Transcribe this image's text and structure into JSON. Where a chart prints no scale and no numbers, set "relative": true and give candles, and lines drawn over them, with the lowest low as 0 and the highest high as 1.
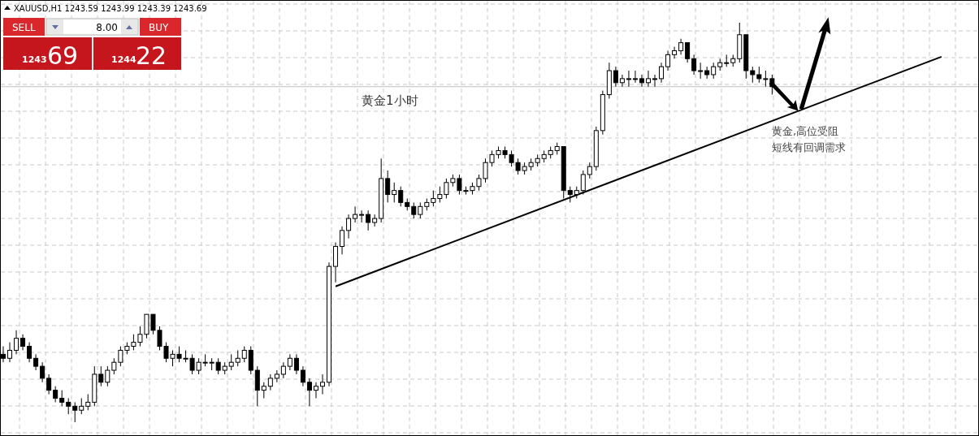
{
  "chart_data": {
    "type": "candlestick",
    "relative": true,
    "title": "XAUUSD,H1  1243.59 1243.99 1243.39 1243.69",
    "grid": true,
    "categories": [
      null,
      null,
      null,
      null,
      null,
      null,
      null,
      null,
      null,
      null,
      null,
      null,
      null,
      null,
      null,
      null,
      null,
      null,
      null,
      null,
      null,
      null,
      null,
      null,
      null,
      null,
      null,
      null,
      null,
      null,
      null,
      null,
      null,
      null,
      null,
      null,
      null,
      null,
      null,
      null,
      null,
      null,
      null,
      null,
      null,
      null,
      null,
      null,
      null,
      null,
      null,
      null,
      null,
      null,
      null,
      null,
      null,
      null,
      null,
      null,
      null,
      null,
      null,
      null,
      null,
      null,
      null,
      null,
      null,
      null,
      null,
      null,
      null,
      null,
      null,
      null,
      null,
      null,
      null,
      null,
      null,
      null,
      null,
      null,
      null,
      null,
      null,
      null,
      null,
      null,
      null,
      null,
      null,
      null,
      null,
      null,
      null,
      null,
      null,
      null,
      null,
      null,
      null,
      null,
      null,
      null,
      null,
      null,
      null,
      null,
      null,
      null,
      null,
      null,
      null,
      null,
      null,
      null,
      null,
      null,
      null,
      null,
      null,
      null,
      null,
      null,
      null,
      null,
      null,
      null,
      null,
      null,
      null,
      null,
      null,
      null,
      null,
      null,
      null,
      null,
      null,
      null,
      null,
      null,
      null,
      null,
      null,
      null,
      null,
      null
    ],
    "ohlc": [
      [
        0.17,
        0.19,
        0.15,
        0.16
      ],
      [
        0.16,
        0.2,
        0.15,
        0.18
      ],
      [
        0.18,
        0.23,
        0.17,
        0.21
      ],
      [
        0.21,
        0.22,
        0.18,
        0.19
      ],
      [
        0.19,
        0.2,
        0.15,
        0.16
      ],
      [
        0.16,
        0.17,
        0.13,
        0.14
      ],
      [
        0.14,
        0.15,
        0.1,
        0.11
      ],
      [
        0.11,
        0.12,
        0.07,
        0.08
      ],
      [
        0.08,
        0.09,
        0.05,
        0.06
      ],
      [
        0.06,
        0.08,
        0.04,
        0.05
      ],
      [
        0.05,
        0.06,
        0.02,
        0.04
      ],
      [
        0.04,
        0.05,
        0,
        0.03
      ],
      [
        0.03,
        0.06,
        0.02,
        0.04
      ],
      [
        0.04,
        0.07,
        0.03,
        0.05
      ],
      [
        0.05,
        0.14,
        0.04,
        0.12
      ],
      [
        0.12,
        0.14,
        0.09,
        0.1
      ],
      [
        0.1,
        0.14,
        0.09,
        0.13
      ],
      [
        0.13,
        0.16,
        0.12,
        0.15
      ],
      [
        0.15,
        0.19,
        0.14,
        0.18
      ],
      [
        0.18,
        0.2,
        0.17,
        0.19
      ],
      [
        0.19,
        0.22,
        0.18,
        0.2
      ],
      [
        0.2,
        0.24,
        0.19,
        0.22
      ],
      [
        0.22,
        0.27,
        0.21,
        0.27
      ],
      [
        0.27,
        0.27,
        0.22,
        0.23
      ],
      [
        0.23,
        0.24,
        0.18,
        0.19
      ],
      [
        0.19,
        0.2,
        0.15,
        0.16
      ],
      [
        0.16,
        0.18,
        0.14,
        0.17
      ],
      [
        0.17,
        0.19,
        0.15,
        0.16
      ],
      [
        0.16,
        0.18,
        0.15,
        0.16
      ],
      [
        0.16,
        0.17,
        0.12,
        0.13
      ],
      [
        0.13,
        0.16,
        0.12,
        0.15
      ],
      [
        0.15,
        0.17,
        0.14,
        0.15
      ],
      [
        0.15,
        0.16,
        0.13,
        0.15
      ],
      [
        0.15,
        0.16,
        0.12,
        0.13
      ],
      [
        0.13,
        0.15,
        0.12,
        0.14
      ],
      [
        0.14,
        0.17,
        0.13,
        0.15
      ],
      [
        0.15,
        0.18,
        0.14,
        0.16
      ],
      [
        0.16,
        0.19,
        0.15,
        0.18
      ],
      [
        0.18,
        0.19,
        0.12,
        0.13
      ],
      [
        0.13,
        0.14,
        0.04,
        0.08
      ],
      [
        0.08,
        0.1,
        0.06,
        0.09
      ],
      [
        0.09,
        0.12,
        0.08,
        0.11
      ],
      [
        0.11,
        0.13,
        0.1,
        0.12
      ],
      [
        0.12,
        0.15,
        0.11,
        0.14
      ],
      [
        0.14,
        0.17,
        0.13,
        0.16
      ],
      [
        0.16,
        0.17,
        0.12,
        0.13
      ],
      [
        0.13,
        0.14,
        0.09,
        0.1
      ],
      [
        0.1,
        0.11,
        0.04,
        0.08
      ],
      [
        0.08,
        0.1,
        0.06,
        0.09
      ],
      [
        0.09,
        0.12,
        0.07,
        0.1
      ],
      [
        0.1,
        0.4,
        0.09,
        0.39
      ],
      [
        0.39,
        0.45,
        0.35,
        0.44
      ],
      [
        0.44,
        0.49,
        0.42,
        0.48
      ],
      [
        0.48,
        0.52,
        0.46,
        0.51
      ],
      [
        0.51,
        0.54,
        0.5,
        0.52
      ],
      [
        0.52,
        0.53,
        0.5,
        0.52
      ],
      [
        0.52,
        0.53,
        0.48,
        0.5
      ],
      [
        0.5,
        0.52,
        0.49,
        0.51
      ],
      [
        0.51,
        0.66,
        0.5,
        0.61
      ],
      [
        0.61,
        0.63,
        0.55,
        0.57
      ],
      [
        0.57,
        0.6,
        0.55,
        0.58
      ],
      [
        0.58,
        0.59,
        0.54,
        0.55
      ],
      [
        0.55,
        0.56,
        0.53,
        0.54
      ],
      [
        0.54,
        0.55,
        0.51,
        0.52
      ],
      [
        0.52,
        0.55,
        0.51,
        0.54
      ],
      [
        0.54,
        0.56,
        0.53,
        0.55
      ],
      [
        0.55,
        0.58,
        0.54,
        0.56
      ],
      [
        0.56,
        0.59,
        0.55,
        0.57
      ],
      [
        0.57,
        0.61,
        0.56,
        0.6
      ],
      [
        0.6,
        0.62,
        0.59,
        0.61
      ],
      [
        0.61,
        0.62,
        0.57,
        0.58
      ],
      [
        0.58,
        0.59,
        0.57,
        0.58
      ],
      [
        0.58,
        0.6,
        0.57,
        0.59
      ],
      [
        0.59,
        0.62,
        0.58,
        0.61
      ],
      [
        0.61,
        0.66,
        0.6,
        0.65
      ],
      [
        0.65,
        0.68,
        0.64,
        0.67
      ],
      [
        0.67,
        0.69,
        0.66,
        0.68
      ],
      [
        0.68,
        0.69,
        0.66,
        0.67
      ],
      [
        0.67,
        0.68,
        0.64,
        0.65
      ],
      [
        0.65,
        0.66,
        0.62,
        0.63
      ],
      [
        0.63,
        0.65,
        0.62,
        0.64
      ],
      [
        0.64,
        0.66,
        0.63,
        0.65
      ],
      [
        0.65,
        0.67,
        0.64,
        0.66
      ],
      [
        0.66,
        0.68,
        0.65,
        0.67
      ],
      [
        0.67,
        0.69,
        0.66,
        0.68
      ],
      [
        0.68,
        0.7,
        0.67,
        0.69
      ],
      [
        0.69,
        0.69,
        0.56,
        0.58
      ],
      [
        0.58,
        0.59,
        0.55,
        0.57
      ],
      [
        0.57,
        0.59,
        0.56,
        0.58
      ],
      [
        0.58,
        0.63,
        0.57,
        0.62
      ],
      [
        0.62,
        0.65,
        0.61,
        0.64
      ],
      [
        0.64,
        0.74,
        0.63,
        0.73
      ],
      [
        0.73,
        0.83,
        0.72,
        0.82
      ],
      [
        0.82,
        0.9,
        0.81,
        0.88
      ],
      [
        0.88,
        0.89,
        0.84,
        0.85
      ],
      [
        0.85,
        0.87,
        0.84,
        0.86
      ],
      [
        0.86,
        0.88,
        0.84,
        0.86
      ],
      [
        0.86,
        0.88,
        0.85,
        0.86
      ],
      [
        0.86,
        0.87,
        0.84,
        0.85
      ],
      [
        0.85,
        0.88,
        0.84,
        0.86
      ],
      [
        0.86,
        0.87,
        0.84,
        0.86
      ],
      [
        0.86,
        0.9,
        0.85,
        0.89
      ],
      [
        0.89,
        0.93,
        0.88,
        0.92
      ],
      [
        0.92,
        0.94,
        0.91,
        0.93
      ],
      [
        0.93,
        0.96,
        0.92,
        0.95
      ],
      [
        0.95,
        0.95,
        0.9,
        0.91
      ],
      [
        0.91,
        0.92,
        0.87,
        0.88
      ],
      [
        0.88,
        0.9,
        0.86,
        0.88
      ],
      [
        0.88,
        0.89,
        0.86,
        0.87
      ],
      [
        0.87,
        0.9,
        0.86,
        0.89
      ],
      [
        0.89,
        0.91,
        0.88,
        0.9
      ],
      [
        0.9,
        0.92,
        0.89,
        0.9
      ],
      [
        0.9,
        0.92,
        0.89,
        0.91
      ],
      [
        0.91,
        1,
        0.9,
        0.97
      ],
      [
        0.97,
        0.97,
        0.86,
        0.88
      ],
      [
        0.88,
        0.89,
        0.85,
        0.87
      ],
      [
        0.87,
        0.89,
        0.85,
        0.86
      ],
      [
        0.86,
        0.88,
        0.84,
        0.86
      ],
      [
        0.86,
        0.87,
        0.82,
        0.84
      ],
      null,
      null,
      null,
      null,
      null,
      null,
      null,
      null,
      null,
      null,
      null,
      null,
      null,
      null,
      null,
      null,
      null,
      null,
      null,
      null,
      null,
      null,
      null,
      null,
      null,
      null,
      null,
      null,
      null,
      null,
      null
    ],
    "series": [
      {
        "type": "line",
        "color": "#000000",
        "values": [
          null,
          null,
          null,
          null,
          null,
          null,
          null,
          null,
          null,
          null,
          null,
          null,
          null,
          null,
          null,
          null,
          null,
          null,
          null,
          null,
          null,
          null,
          null,
          null,
          null,
          null,
          null,
          null,
          null,
          null,
          null,
          null,
          null,
          null,
          null,
          null,
          null,
          null,
          null,
          null,
          null,
          null,
          null,
          null,
          null,
          null,
          null,
          null,
          null,
          null,
          null,
          0.34,
          null,
          null,
          null,
          null,
          null,
          null,
          null,
          null,
          null,
          null,
          null,
          null,
          null,
          null,
          null,
          null,
          null,
          null,
          null,
          null,
          null,
          null,
          null,
          null,
          null,
          null,
          null,
          null,
          null,
          null,
          null,
          null,
          null,
          null,
          null,
          null,
          null,
          null,
          null,
          null,
          null,
          null,
          null,
          null,
          null,
          null,
          null,
          null,
          null,
          null,
          null,
          null,
          null,
          null,
          null,
          null,
          null,
          null,
          null,
          null,
          null,
          null,
          null,
          null,
          null,
          null,
          null,
          null,
          null,
          null,
          null,
          null,
          null,
          null,
          null,
          null,
          null,
          null,
          null,
          null,
          null,
          null,
          null,
          null,
          null,
          null,
          null,
          null,
          null,
          null,
          null,
          null,
          0.915,
          null,
          null,
          null,
          null,
          null
        ]
      }
    ],
    "ref_lines": [
      {
        "axis": "y",
        "value": 0.84,
        "color": "#c0c0c0"
      }
    ],
    "annotations": [
      "黄金1小时",
      "黄金,高位受阻",
      "短线有回调需求",
      "SELL",
      "8.00",
      "BUY",
      "1243",
      "69",
      "1244",
      "22"
    ]
  }
}
